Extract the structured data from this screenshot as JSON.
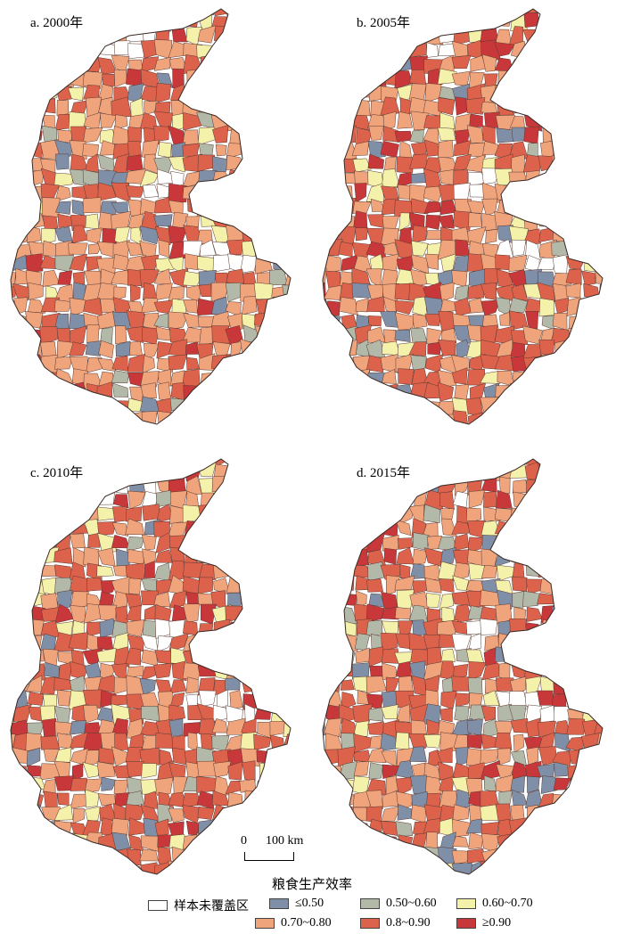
{
  "panels": [
    {
      "id": "a",
      "title": "a. 2000年",
      "dominant_class": 4
    },
    {
      "id": "b",
      "title": "b. 2005年",
      "dominant_class": 4
    },
    {
      "id": "c",
      "title": "c. 2010年",
      "dominant_class": 5
    },
    {
      "id": "d",
      "title": "d. 2015年",
      "dominant_class": 5
    }
  ],
  "scale_bar": {
    "start_label": "0",
    "end_label": "100 km"
  },
  "legend": {
    "title": "粮食生产效率",
    "items": [
      {
        "label": "样本未覆盖区",
        "color": "#ffffff"
      },
      {
        "label": "≤0.50",
        "color": "#7f8fa8"
      },
      {
        "label": "0.50~0.60",
        "color": "#b2b9a8"
      },
      {
        "label": "0.60~0.70",
        "color": "#f4f1aa"
      },
      {
        "label": "0.70~0.80",
        "color": "#f0a47c"
      },
      {
        "label": "0.8~0.90",
        "color": "#dc624c"
      },
      {
        "label": "≥0.90",
        "color": "#c8383a"
      }
    ]
  }
}
